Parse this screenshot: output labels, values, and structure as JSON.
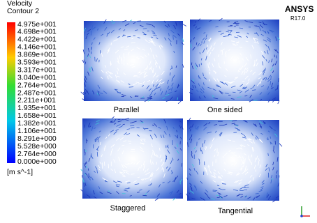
{
  "header": {
    "title": "Velocity",
    "subtitle": "Contour 2"
  },
  "legend": {
    "labels": [
      "4.975e+001",
      "4.698e+001",
      "4.422e+001",
      "4.146e+001",
      "3.869e+001",
      "3.593e+001",
      "3.317e+001",
      "3.040e+001",
      "2.764e+001",
      "2.487e+001",
      "2.211e+001",
      "1.935e+001",
      "1.658e+001",
      "1.382e+001",
      "1.106e+001",
      "8.291e+000",
      "5.528e+000",
      "2.764e+000",
      "0.000e+000"
    ],
    "unit": "[m s^-1]"
  },
  "logo": {
    "name": "ANSYS",
    "version": "R17.0"
  },
  "panels": [
    {
      "caption": "Parallel"
    },
    {
      "caption": "One sided"
    },
    {
      "caption": "Staggered"
    },
    {
      "caption": "Tangential"
    }
  ]
}
